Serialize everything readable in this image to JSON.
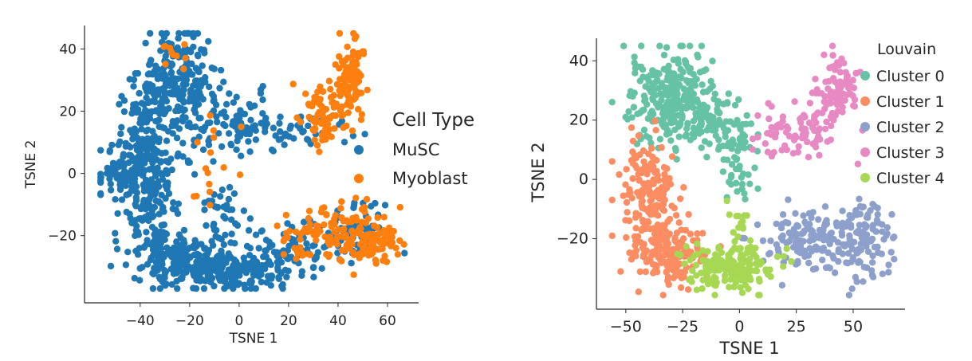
{
  "chart_data": [
    {
      "type": "scatter",
      "xlabel": "TSNE 1",
      "ylabel": "TSNE 2",
      "xlim": [
        -58,
        70
      ],
      "ylim": [
        -38,
        46
      ],
      "x_ticks": [
        -40,
        -20,
        0,
        20,
        40,
        60
      ],
      "y_ticks": [
        -20,
        0,
        20,
        40
      ],
      "x_tick_labels": [
        "−40",
        "−20",
        "0",
        "20",
        "40",
        "60"
      ],
      "y_tick_labels": [
        "−20",
        "0",
        "20",
        "40"
      ],
      "legend": {
        "title": "Cell Type",
        "placement": "right"
      },
      "series": [
        {
          "name": "MuSC",
          "color": "#1f77b4",
          "clusters": [
            {
              "cx": -25,
              "cy": 28,
              "sx": 8,
              "sy": 9,
              "n": 260
            },
            {
              "cx": -38,
              "cy": 10,
              "sx": 6,
              "sy": 10,
              "n": 150
            },
            {
              "cx": -45,
              "cy": 0,
              "sx": 7,
              "sy": 4,
              "n": 90
            },
            {
              "cx": -35,
              "cy": -15,
              "sx": 6,
              "sy": 8,
              "n": 110
            },
            {
              "cx": -20,
              "cy": -28,
              "sx": 10,
              "sy": 4,
              "n": 180
            },
            {
              "cx": 0,
              "cy": -32,
              "sx": 8,
              "sy": 3,
              "n": 120
            },
            {
              "cx": 20,
              "cy": -26,
              "sx": 8,
              "sy": 4,
              "n": 80
            },
            {
              "cx": 0,
              "cy": 15,
              "sx": 9,
              "sy": 5,
              "n": 80
            },
            {
              "cx": 25,
              "cy": 14,
              "sx": 10,
              "sy": 3,
              "n": 40
            },
            {
              "cx": -5,
              "cy": -15,
              "sx": 6,
              "sy": 6,
              "n": 40
            },
            {
              "cx": 45,
              "cy": -18,
              "sx": 9,
              "sy": 5,
              "n": 70
            }
          ]
        },
        {
          "name": "Myoblast",
          "color": "#ff7f0e",
          "clusters": [
            {
              "cx": 45,
              "cy": 33,
              "sx": 3,
              "sy": 6,
              "n": 80
            },
            {
              "cx": 38,
              "cy": 22,
              "sx": 6,
              "sy": 4,
              "n": 50
            },
            {
              "cx": 33,
              "cy": 15,
              "sx": 5,
              "sy": 3,
              "n": 30
            },
            {
              "cx": 55,
              "cy": -22,
              "sx": 6,
              "sy": 4,
              "n": 100
            },
            {
              "cx": 40,
              "cy": -18,
              "sx": 8,
              "sy": 5,
              "n": 60
            },
            {
              "cx": 25,
              "cy": -22,
              "sx": 6,
              "sy": 4,
              "n": 30
            },
            {
              "cx": -25,
              "cy": 38,
              "sx": 4,
              "sy": 2,
              "n": 10
            },
            {
              "cx": -10,
              "cy": 0,
              "sx": 6,
              "sy": 8,
              "n": 15
            }
          ]
        }
      ]
    },
    {
      "type": "scatter",
      "xlabel": "TSNE 1",
      "ylabel": "TSNE 2",
      "xlim": [
        -58,
        70
      ],
      "ylim": [
        -40,
        46
      ],
      "x_ticks": [
        -50,
        -25,
        0,
        25,
        50
      ],
      "y_ticks": [
        -20,
        0,
        20,
        40
      ],
      "x_tick_labels": [
        "−50",
        "−25",
        "0",
        "25",
        "50"
      ],
      "y_tick_labels": [
        "−20",
        "0",
        "20",
        "40"
      ],
      "legend": {
        "title": "Louvain",
        "placement": "top-right"
      },
      "series": [
        {
          "name": "Cluster 0",
          "color": "#66c2a5",
          "clusters": [
            {
              "cx": -30,
              "cy": 28,
              "sx": 9,
              "sy": 8,
              "n": 260
            },
            {
              "cx": -10,
              "cy": 18,
              "sx": 7,
              "sy": 5,
              "n": 80
            },
            {
              "cx": 0,
              "cy": 5,
              "sx": 4,
              "sy": 8,
              "n": 40
            }
          ]
        },
        {
          "name": "Cluster 1",
          "color": "#fc8d62",
          "clusters": [
            {
              "cx": -40,
              "cy": -5,
              "sx": 6,
              "sy": 10,
              "n": 180
            },
            {
              "cx": -30,
              "cy": -25,
              "sx": 8,
              "sy": 5,
              "n": 150
            }
          ]
        },
        {
          "name": "Cluster 2",
          "color": "#8da0cb",
          "clusters": [
            {
              "cx": 30,
              "cy": -20,
              "sx": 10,
              "sy": 5,
              "n": 130
            },
            {
              "cx": 55,
              "cy": -20,
              "sx": 8,
              "sy": 7,
              "n": 110
            }
          ]
        },
        {
          "name": "Cluster 3",
          "color": "#e78ac3",
          "clusters": [
            {
              "cx": 42,
              "cy": 28,
              "sx": 5,
              "sy": 7,
              "n": 90
            },
            {
              "cx": 25,
              "cy": 16,
              "sx": 9,
              "sy": 4,
              "n": 70
            }
          ]
        },
        {
          "name": "Cluster 4",
          "color": "#a6d854",
          "clusters": [
            {
              "cx": -5,
              "cy": -30,
              "sx": 10,
              "sy": 4,
              "n": 180
            },
            {
              "cx": 0,
              "cy": -15,
              "sx": 3,
              "sy": 4,
              "n": 15
            }
          ]
        }
      ]
    }
  ]
}
